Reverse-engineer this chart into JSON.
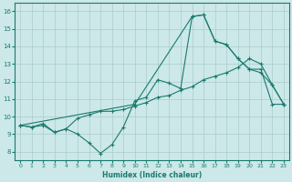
{
  "line1_x": [
    0,
    1,
    2,
    3,
    4,
    5,
    6,
    7,
    8,
    9,
    10,
    11,
    12,
    13,
    14,
    15,
    16,
    17,
    18,
    19,
    20,
    21,
    22,
    23
  ],
  "line1_y": [
    9.5,
    9.4,
    9.5,
    9.1,
    9.3,
    9.0,
    8.5,
    7.9,
    8.4,
    9.4,
    10.9,
    11.1,
    12.1,
    11.9,
    11.6,
    15.7,
    15.8,
    14.3,
    14.1,
    13.3,
    12.7,
    12.7,
    10.7,
    10.7
  ],
  "line2_x": [
    0,
    1,
    2,
    3,
    4,
    5,
    6,
    7,
    8,
    9,
    10,
    11,
    12,
    13,
    14,
    15,
    16,
    17,
    18,
    19,
    20,
    21,
    22,
    23
  ],
  "line2_y": [
    9.5,
    9.4,
    9.6,
    9.1,
    9.3,
    9.9,
    10.1,
    10.3,
    10.3,
    10.4,
    10.6,
    10.8,
    11.1,
    11.2,
    11.5,
    11.7,
    12.1,
    12.3,
    12.5,
    12.8,
    13.3,
    13.0,
    11.8,
    10.7
  ],
  "line3_x": [
    0,
    10,
    15,
    16,
    17,
    18,
    19,
    20,
    21,
    22,
    23
  ],
  "line3_y": [
    9.5,
    10.7,
    15.7,
    15.8,
    14.3,
    14.1,
    13.3,
    12.7,
    12.5,
    11.8,
    10.7
  ],
  "color": "#1a7a6e",
  "bg_color": "#cce8e8",
  "grid_color": "#aacccc",
  "xlabel": "Humidex (Indice chaleur)",
  "xlim": [
    -0.5,
    23.5
  ],
  "ylim": [
    7.5,
    16.5
  ],
  "yticks": [
    8,
    9,
    10,
    11,
    12,
    13,
    14,
    15,
    16
  ],
  "xticks": [
    0,
    1,
    2,
    3,
    4,
    5,
    6,
    7,
    8,
    9,
    10,
    11,
    12,
    13,
    14,
    15,
    16,
    17,
    18,
    19,
    20,
    21,
    22,
    23
  ]
}
